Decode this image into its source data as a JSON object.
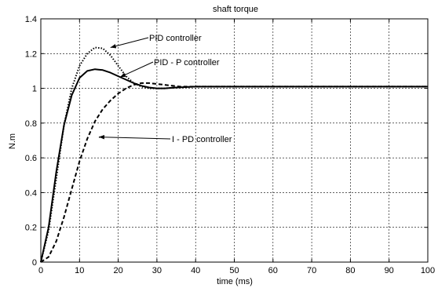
{
  "chart_data": {
    "type": "line",
    "title": "shaft torque",
    "xlabel": "time (ms)",
    "ylabel": "N.m",
    "xlim": [
      0,
      100
    ],
    "ylim": [
      0,
      1.4
    ],
    "xticks": [
      0,
      10,
      20,
      30,
      40,
      50,
      60,
      70,
      80,
      90,
      100
    ],
    "yticks": [
      0,
      0.2,
      0.4,
      0.6,
      0.8,
      1,
      1.2,
      1.4
    ],
    "grid": true,
    "series": [
      {
        "name": "PID controller",
        "style": "dotted",
        "color": "#000000",
        "x": [
          0,
          2,
          4,
          6,
          8,
          10,
          12,
          14,
          16,
          18,
          20,
          22,
          24,
          26,
          28,
          30,
          32,
          35,
          40,
          45,
          50,
          60,
          70,
          80,
          90,
          100
        ],
        "y": [
          0,
          0.18,
          0.48,
          0.79,
          1.0,
          1.13,
          1.2,
          1.235,
          1.23,
          1.19,
          1.13,
          1.07,
          1.03,
          1.01,
          1.0,
          1.0,
          1.0,
          1.005,
          1.01,
          1.01,
          1.01,
          1.01,
          1.01,
          1.01,
          1.01,
          1.01
        ]
      },
      {
        "name": "PID - P controller",
        "style": "solid",
        "color": "#000000",
        "x": [
          0,
          2,
          4,
          6,
          8,
          10,
          12,
          14,
          16,
          18,
          20,
          22,
          24,
          26,
          28,
          30,
          32,
          35,
          40,
          45,
          50,
          60,
          70,
          80,
          90,
          100
        ],
        "y": [
          0,
          0.2,
          0.52,
          0.79,
          0.96,
          1.06,
          1.1,
          1.11,
          1.105,
          1.09,
          1.07,
          1.05,
          1.03,
          1.015,
          1.005,
          1.0,
          1.0,
          1.005,
          1.01,
          1.01,
          1.01,
          1.01,
          1.01,
          1.01,
          1.01,
          1.01
        ]
      },
      {
        "name": "I - PD controller",
        "style": "dashed",
        "color": "#000000",
        "x": [
          0,
          2,
          4,
          6,
          8,
          10,
          12,
          14,
          16,
          18,
          20,
          22,
          24,
          26,
          28,
          30,
          32,
          34,
          36,
          38,
          40,
          45,
          50,
          60,
          70,
          80,
          90,
          100
        ],
        "y": [
          0,
          0.03,
          0.12,
          0.26,
          0.42,
          0.58,
          0.71,
          0.81,
          0.88,
          0.93,
          0.97,
          1.0,
          1.02,
          1.03,
          1.03,
          1.025,
          1.02,
          1.015,
          1.01,
          1.01,
          1.01,
          1.01,
          1.01,
          1.01,
          1.01,
          1.01,
          1.01,
          1.01
        ]
      }
    ],
    "annotations": [
      {
        "text": "PID controller",
        "series": 0,
        "arrow_to": [
          18,
          1.235
        ]
      },
      {
        "text": "PID - P controller",
        "series": 1,
        "arrow_to": [
          20.5,
          1.065
        ]
      },
      {
        "text": "I - PD controller",
        "series": 2,
        "arrow_to": [
          15,
          0.72
        ]
      }
    ]
  }
}
